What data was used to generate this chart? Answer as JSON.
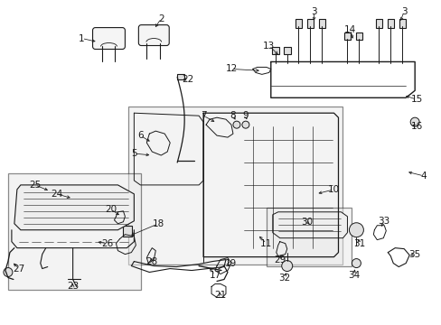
{
  "bg": "#ffffff",
  "line_color": "#1a1a1a",
  "fig_w": 4.89,
  "fig_h": 3.6,
  "dpi": 100
}
